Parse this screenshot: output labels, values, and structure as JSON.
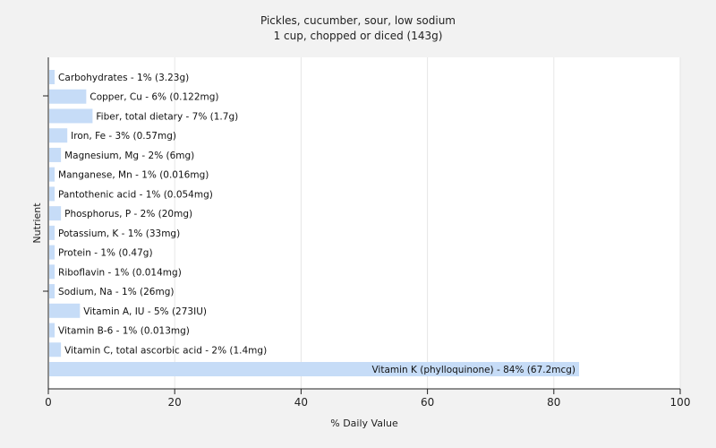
{
  "chart_data": {
    "type": "bar",
    "orientation": "horizontal",
    "title": "Pickles, cucumber, sour, low sodium",
    "subtitle": "1 cup, chopped or diced (143g)",
    "xlabel": "% Daily Value",
    "ylabel": "Nutrient",
    "xlim": [
      0,
      100
    ],
    "xticks": [
      "0",
      "20",
      "40",
      "60",
      "80",
      "100"
    ],
    "grid": true,
    "bar_color": "#c6dcf7",
    "categories": [
      "Carbohydrates",
      "Copper, Cu",
      "Fiber, total dietary",
      "Iron, Fe",
      "Magnesium, Mg",
      "Manganese, Mn",
      "Pantothenic acid",
      "Phosphorus, P",
      "Potassium, K",
      "Protein",
      "Riboflavin",
      "Sodium, Na",
      "Vitamin A, IU",
      "Vitamin B-6",
      "Vitamin C, total ascorbic acid",
      "Vitamin K (phylloquinone)"
    ],
    "values": [
      1,
      6,
      7,
      3,
      2,
      1,
      1,
      2,
      1,
      1,
      1,
      1,
      5,
      1,
      2,
      84
    ],
    "labels": [
      "Carbohydrates - 1% (3.23g)",
      "Copper, Cu - 6% (0.122mg)",
      "Fiber, total dietary - 7% (1.7g)",
      "Iron, Fe - 3% (0.57mg)",
      "Magnesium, Mg - 2% (6mg)",
      "Manganese, Mn - 1% (0.016mg)",
      "Pantothenic acid - 1% (0.054mg)",
      "Phosphorus, P - 2% (20mg)",
      "Potassium, K - 1% (33mg)",
      "Protein - 1% (0.47g)",
      "Riboflavin - 1% (0.014mg)",
      "Sodium, Na - 1% (26mg)",
      "Vitamin A, IU - 5% (273IU)",
      "Vitamin B-6 - 1% (0.013mg)",
      "Vitamin C, total ascorbic acid - 2% (1.4mg)",
      "Vitamin K (phylloquinone) - 84% (67.2mcg)"
    ]
  }
}
